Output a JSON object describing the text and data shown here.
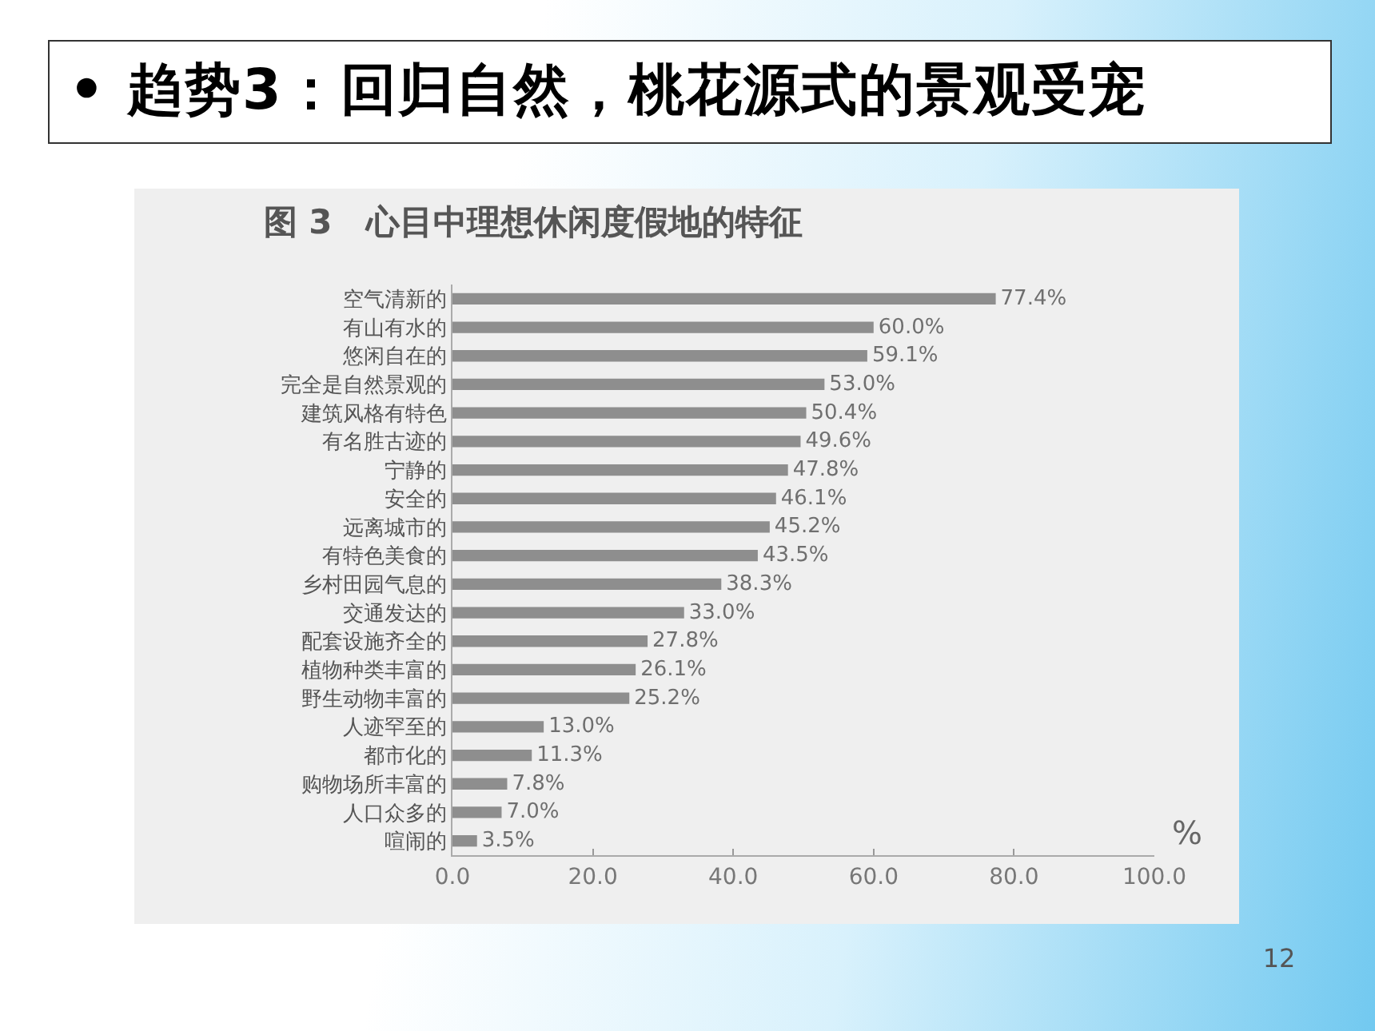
{
  "chart_data": {
    "type": "bar",
    "orientation": "horizontal",
    "title": "• 趋势3：回归自然，桃花源式的景观受宠",
    "subtitle": "图 3　心目中理想休闲度假地的特征",
    "xlabel": "%",
    "annotations": [
      "12"
    ],
    "categories": [
      "空气清新的",
      "有山有水的",
      "悠闲自在的",
      "完全是自然景观的",
      "建筑风格有特色",
      "有名胜古迹的",
      "宁静的",
      "安全的",
      "远离城市的",
      "有特色美食的",
      "乡村田园气息的",
      "交通发达的",
      "配套设施齐全的",
      "植物种类丰富的",
      "野生动物丰富的",
      "人迹罕至的",
      "都市化的",
      "购物场所丰富的",
      "人口众多的",
      "喧闹的"
    ],
    "values": [
      77.4,
      60.0,
      59.1,
      53.0,
      50.4,
      49.6,
      47.8,
      46.1,
      45.2,
      43.5,
      38.3,
      33.0,
      27.8,
      26.1,
      25.2,
      13.0,
      11.3,
      7.8,
      7.0,
      3.5
    ],
    "value_labels": [
      "77.4%",
      "60.0%",
      "59.1%",
      "53.0%",
      "50.4%",
      "49.6%",
      "47.8%",
      "46.1%",
      "45.2%",
      "43.5%",
      "38.3%",
      "33.0%",
      "27.8%",
      "26.1%",
      "25.2%",
      "13.0%",
      "11.3%",
      "7.8%",
      "7.0%",
      "3.5%"
    ],
    "color": "#8e8e8e",
    "xlim": [
      0,
      100
    ],
    "xticks": [
      {
        "value": 0,
        "label": "0.0"
      },
      {
        "value": 20,
        "label": "20.0"
      },
      {
        "value": 40,
        "label": "40.0"
      },
      {
        "value": 60,
        "label": "60.0"
      },
      {
        "value": 80,
        "label": "80.0"
      },
      {
        "value": 100,
        "label": "100.0"
      }
    ]
  }
}
